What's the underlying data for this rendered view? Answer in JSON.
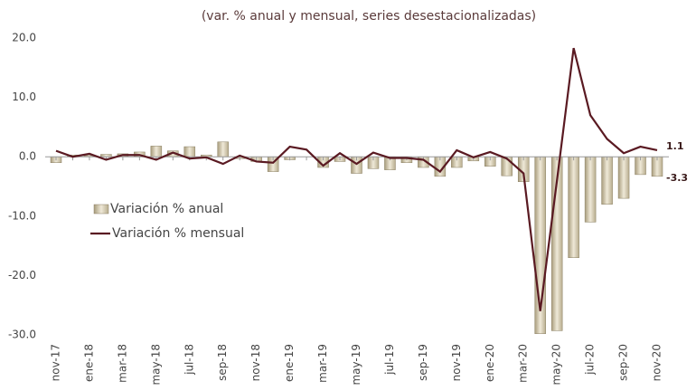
{
  "chart_data": {
    "type": "bar_line",
    "title": "(var. % anual y mensual, series desestacionalizadas)",
    "categories": [
      "nov-17",
      null,
      "ene-18",
      null,
      "mar-18",
      null,
      "may-18",
      null,
      "jul-18",
      null,
      "sep-18",
      null,
      "nov-18",
      null,
      "ene-19",
      null,
      "mar-19",
      null,
      "may-19",
      null,
      "jul-19",
      null,
      "sep-19",
      null,
      "nov-19",
      null,
      "ene-20",
      null,
      "mar-20",
      null,
      "may-20",
      null,
      "jul-20",
      null,
      "sep-20",
      null,
      "nov-20"
    ],
    "series": [
      {
        "name": "Variación % anual",
        "type": "bar",
        "color": "#d8ceb2",
        "values": [
          -1.0,
          0.3,
          0.2,
          0.4,
          0.5,
          0.8,
          1.8,
          1.0,
          1.7,
          0.3,
          2.5,
          -0.3,
          -0.8,
          -2.5,
          -0.5,
          0.0,
          -1.8,
          -0.8,
          -2.8,
          -2.0,
          -2.2,
          -1.0,
          -1.8,
          -3.3,
          -1.8,
          -0.7,
          -1.6,
          -3.2,
          -4.2,
          -29.8,
          -29.3,
          -17.0,
          -11.0,
          -8.0,
          -7.0,
          -3.0,
          -3.3
        ]
      },
      {
        "name": "Variación % mensual",
        "type": "line",
        "color": "#5a1a22",
        "values": [
          1.0,
          0.0,
          0.5,
          -0.5,
          0.3,
          0.3,
          -0.5,
          0.7,
          -0.3,
          -0.1,
          -1.2,
          0.2,
          -0.8,
          -1.0,
          1.7,
          1.2,
          -1.5,
          0.6,
          -1.2,
          0.7,
          -0.2,
          -0.2,
          -0.5,
          -2.5,
          1.1,
          -0.1,
          0.8,
          -0.3,
          -2.8,
          -26.0,
          -4.0,
          18.3,
          7.0,
          3.0,
          0.6,
          1.7,
          1.1
        ]
      }
    ],
    "ylim": [
      -30,
      20
    ],
    "yticks": [
      {
        "value": -30,
        "label": "-30.0"
      },
      {
        "value": -20,
        "label": "-20.0"
      },
      {
        "value": -10,
        "label": "-10.0"
      },
      {
        "value": 0,
        "label": "0.0"
      },
      {
        "value": 10,
        "label": "10.0"
      },
      {
        "value": 20,
        "label": "20.0"
      }
    ]
  }
}
